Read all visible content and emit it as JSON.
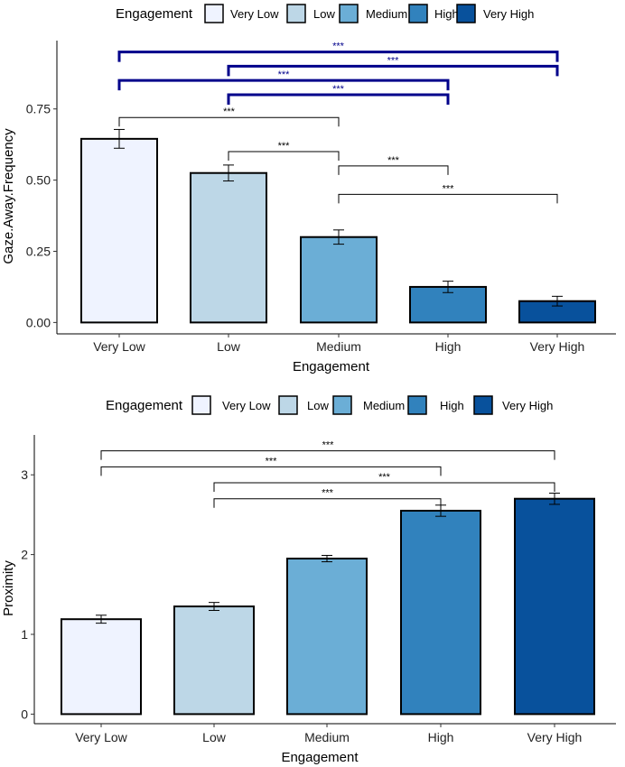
{
  "chart_data": [
    {
      "type": "bar",
      "legend": {
        "title": "Engagement",
        "position": "top",
        "entries": [
          "Very Low",
          "Low",
          "Medium",
          "High",
          "Very High"
        ]
      },
      "xlabel": "Engagement",
      "ylabel": "Gaze.Away.Frequency",
      "categories": [
        "Very Low",
        "Low",
        "Medium",
        "High",
        "Very High"
      ],
      "values": [
        0.645,
        0.525,
        0.3,
        0.125,
        0.075
      ],
      "errors": [
        0.033,
        0.028,
        0.025,
        0.02,
        0.017
      ],
      "colors": [
        "#eff3ff",
        "#bdd7e7",
        "#6baed6",
        "#3182bd",
        "#08519c"
      ],
      "ylim": [
        -0.04,
        0.99
      ],
      "yticks": [
        0,
        0.25,
        0.5,
        0.75
      ],
      "ytick_labels": [
        "0.00",
        "0.25",
        "0.50",
        "0.75"
      ],
      "significance": [
        {
          "from": 0,
          "to": 4,
          "label": "***",
          "y": 0.95,
          "color": "#00008b",
          "emphasis": true
        },
        {
          "from": 1,
          "to": 4,
          "label": "***",
          "y": 0.9,
          "color": "#00008b",
          "emphasis": true
        },
        {
          "from": 0,
          "to": 3,
          "label": "***",
          "y": 0.85,
          "color": "#00008b",
          "emphasis": true
        },
        {
          "from": 1,
          "to": 3,
          "label": "***",
          "y": 0.8,
          "color": "#00008b",
          "emphasis": true
        },
        {
          "from": 0,
          "to": 2,
          "label": "***",
          "y": 0.72,
          "color": "#000000",
          "emphasis": false
        },
        {
          "from": 1,
          "to": 2,
          "label": "***",
          "y": 0.6,
          "color": "#000000",
          "emphasis": false
        },
        {
          "from": 2,
          "to": 3,
          "label": "***",
          "y": 0.55,
          "color": "#000000",
          "emphasis": false
        },
        {
          "from": 2,
          "to": 4,
          "label": "***",
          "y": 0.45,
          "color": "#000000",
          "emphasis": false
        }
      ]
    },
    {
      "type": "bar",
      "legend": {
        "title": "Engagement",
        "position": "top",
        "entries": [
          "Very Low",
          "Low",
          "Medium",
          "High",
          "Very High"
        ]
      },
      "xlabel": "Engagement",
      "ylabel": "Proximity",
      "categories": [
        "Very Low",
        "Low",
        "Medium",
        "High",
        "Very High"
      ],
      "values": [
        1.19,
        1.35,
        1.95,
        2.55,
        2.7
      ],
      "errors": [
        0.05,
        0.05,
        0.04,
        0.07,
        0.07
      ],
      "colors": [
        "#eff3ff",
        "#bdd7e7",
        "#6baed6",
        "#3182bd",
        "#08519c"
      ],
      "ylim": [
        -0.12,
        3.5
      ],
      "yticks": [
        0,
        1,
        2,
        3
      ],
      "ytick_labels": [
        "0",
        "1",
        "2",
        "3"
      ],
      "significance": [
        {
          "from": 0,
          "to": 4,
          "label": "***",
          "y": 3.3,
          "color": "#000000",
          "emphasis": false
        },
        {
          "from": 0,
          "to": 3,
          "label": "***",
          "y": 3.1,
          "color": "#000000",
          "emphasis": false
        },
        {
          "from": 1,
          "to": 4,
          "label": "***",
          "y": 2.9,
          "color": "#000000",
          "emphasis": false
        },
        {
          "from": 1,
          "to": 3,
          "label": "***",
          "y": 2.7,
          "color": "#000000",
          "emphasis": false
        }
      ]
    }
  ]
}
